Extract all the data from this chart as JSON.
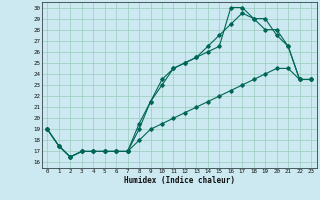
{
  "xlabel": "Humidex (Indice chaleur)",
  "bg_color": "#cce8f0",
  "grid_color": "#99ccbb",
  "line_color": "#006655",
  "xlim": [
    -0.5,
    23.5
  ],
  "ylim": [
    15.5,
    30.5
  ],
  "xticks": [
    0,
    1,
    2,
    3,
    4,
    5,
    6,
    7,
    8,
    9,
    10,
    11,
    12,
    13,
    14,
    15,
    16,
    17,
    18,
    19,
    20,
    21,
    22,
    23
  ],
  "yticks": [
    16,
    17,
    18,
    19,
    20,
    21,
    22,
    23,
    24,
    25,
    26,
    27,
    28,
    29,
    30
  ],
  "line1": {
    "x": [
      0,
      1,
      2,
      3,
      4,
      5,
      6,
      7,
      8,
      9,
      10,
      11,
      12,
      13,
      14,
      15,
      16,
      17,
      18,
      19,
      20,
      21,
      22,
      23
    ],
    "y": [
      19.0,
      17.5,
      16.5,
      17.0,
      17.0,
      17.0,
      17.0,
      17.0,
      18.0,
      19.0,
      19.5,
      20.0,
      20.5,
      21.0,
      21.5,
      22.0,
      22.5,
      23.0,
      23.5,
      24.0,
      24.5,
      24.5,
      23.5,
      23.5
    ]
  },
  "line2": {
    "x": [
      0,
      1,
      2,
      3,
      4,
      5,
      6,
      7,
      7,
      8,
      9,
      10,
      11,
      12,
      13,
      14,
      15,
      16,
      17,
      18,
      19,
      20,
      21,
      22,
      23
    ],
    "y": [
      19.0,
      17.5,
      16.5,
      17.0,
      17.0,
      17.0,
      17.0,
      17.0,
      17.0,
      19.5,
      21.5,
      23.0,
      24.5,
      25.0,
      25.5,
      26.0,
      26.5,
      30.0,
      30.0,
      29.0,
      29.0,
      27.5,
      26.5,
      23.5,
      23.5
    ]
  },
  "line3": {
    "x": [
      0,
      1,
      2,
      3,
      4,
      5,
      6,
      7,
      8,
      9,
      10,
      11,
      12,
      13,
      14,
      15,
      16,
      17,
      18,
      19,
      20,
      21,
      22,
      23
    ],
    "y": [
      19.0,
      17.5,
      16.5,
      17.0,
      17.0,
      17.0,
      17.0,
      17.0,
      19.0,
      21.5,
      23.5,
      24.5,
      25.0,
      25.5,
      26.5,
      27.5,
      28.5,
      29.5,
      29.0,
      28.0,
      28.0,
      26.5,
      23.5,
      23.5
    ]
  }
}
